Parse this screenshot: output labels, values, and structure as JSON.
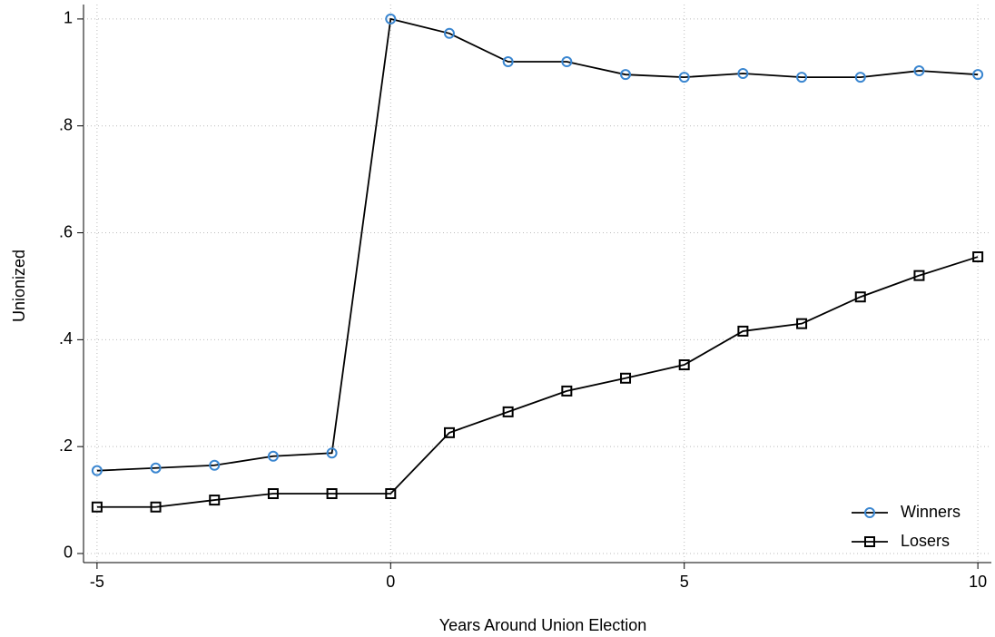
{
  "chart_data": {
    "type": "line",
    "xlabel": "Years Around Union Election",
    "ylabel": "Unionized",
    "x": [
      -5,
      -4,
      -3,
      -2,
      -1,
      0,
      1,
      2,
      3,
      4,
      5,
      6,
      7,
      8,
      9,
      10
    ],
    "series": [
      {
        "name": "Winners",
        "color": "#3a86d0",
        "marker": "circle",
        "values": [
          0.155,
          0.16,
          0.165,
          0.182,
          0.188,
          1.0,
          0.973,
          0.92,
          0.92,
          0.896,
          0.891,
          0.898,
          0.891,
          0.891,
          0.903,
          0.896
        ]
      },
      {
        "name": "Losers",
        "color": "#000000",
        "marker": "square",
        "values": [
          0.087,
          0.087,
          0.1,
          0.112,
          0.112,
          0.112,
          0.226,
          0.265,
          0.304,
          0.328,
          0.353,
          0.416,
          0.43,
          0.48,
          0.52,
          0.555
        ]
      }
    ],
    "line_color": "#000000",
    "xlim": [
      -5.23,
      10.23
    ],
    "xticks": [
      -5,
      0,
      5,
      10
    ],
    "ylim": [
      -0.017,
      1.027
    ],
    "yticks": [
      0,
      {
        "value": 0.2,
        "label": ".2"
      },
      {
        "value": 0.4,
        "label": ".4"
      },
      {
        "value": 0.6,
        "label": ".6"
      },
      {
        "value": 0.8,
        "label": ".8"
      },
      1
    ],
    "grid": true,
    "legend": "lower right"
  }
}
